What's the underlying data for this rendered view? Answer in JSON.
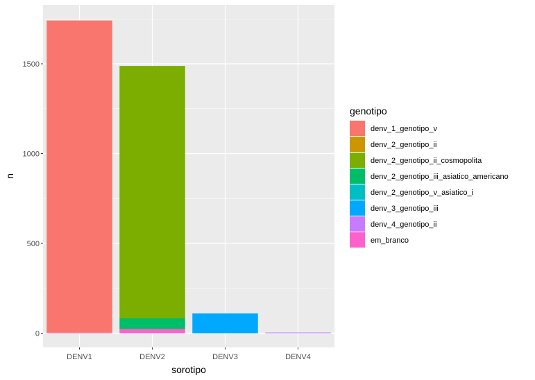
{
  "chart_data": {
    "type": "bar",
    "stacked": true,
    "xlabel": "sorotipo",
    "ylabel": "n",
    "categories": [
      "DENV1",
      "DENV2",
      "DENV3",
      "DENV4"
    ],
    "ylim": [
      0,
      1800
    ],
    "yticks": [
      0,
      500,
      1000,
      1500
    ],
    "grid": true,
    "legend_position": "right",
    "legend_title": "genotipo",
    "series": [
      {
        "name": "denv_1_genotipo_v",
        "color": "#F8766D",
        "values": [
          1738,
          0,
          0,
          0
        ]
      },
      {
        "name": "denv_2_genotipo_ii",
        "color": "#CD9600",
        "values": [
          0,
          0,
          0,
          0
        ]
      },
      {
        "name": "denv_2_genotipo_ii_cosmopolita",
        "color": "#7CAE00",
        "values": [
          0,
          1405,
          0,
          0
        ]
      },
      {
        "name": "denv_2_genotipo_iii_asiatico_americano",
        "color": "#00BE67",
        "values": [
          0,
          60,
          0,
          0
        ]
      },
      {
        "name": "denv_2_genotipo_v_asiatico_i",
        "color": "#00BFC4",
        "values": [
          0,
          0,
          0,
          0
        ]
      },
      {
        "name": "denv_3_genotipo_iii",
        "color": "#00A9FF",
        "values": [
          0,
          0,
          110,
          0
        ]
      },
      {
        "name": "denv_4_genotipo_ii",
        "color": "#C77CFF",
        "values": [
          0,
          0,
          0,
          4
        ]
      },
      {
        "name": "em_branco",
        "color": "#FF61CC",
        "values": [
          3,
          23,
          0,
          0
        ]
      }
    ],
    "stack_order_bottom_to_top": [
      "em_branco",
      "denv_4_genotipo_ii",
      "denv_3_genotipo_iii",
      "denv_2_genotipo_v_asiatico_i",
      "denv_2_genotipo_iii_asiatico_americano",
      "denv_2_genotipo_ii_cosmopolita",
      "denv_2_genotipo_ii",
      "denv_1_genotipo_v"
    ]
  }
}
